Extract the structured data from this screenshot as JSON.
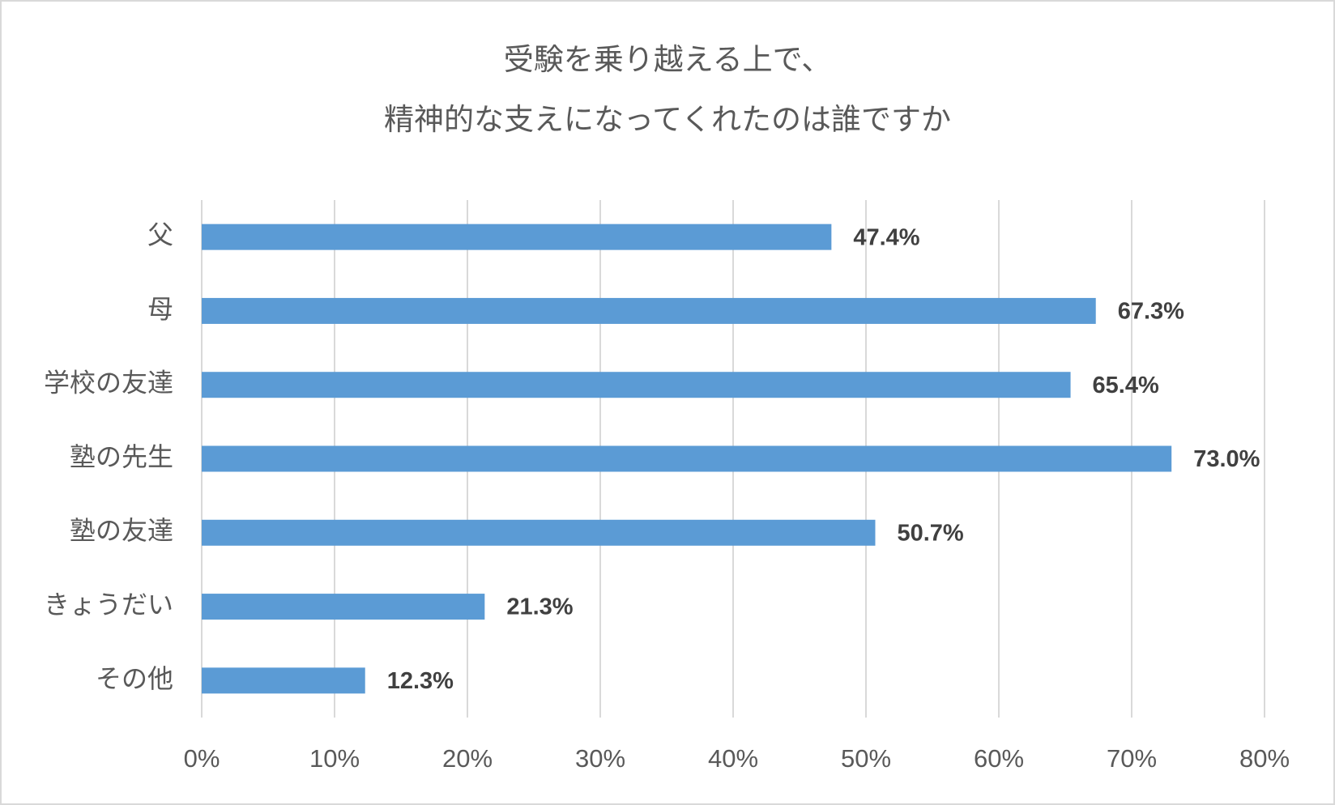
{
  "chart_data": {
    "type": "bar",
    "orientation": "horizontal",
    "title": [
      "受験を乗り越える上で、",
      "精神的な支えになってくれたのは誰ですか"
    ],
    "categories": [
      "父",
      "母",
      "学校の友達",
      "塾の先生",
      "塾の友達",
      "きょうだい",
      "その他"
    ],
    "values": [
      47.4,
      67.3,
      65.4,
      73.0,
      50.7,
      21.3,
      12.3
    ],
    "value_labels": [
      "47.4%",
      "67.3%",
      "65.4%",
      "73.0%",
      "50.7%",
      "21.3%",
      "12.3%"
    ],
    "color": "#5b9bd5",
    "xlim": [
      0,
      80
    ],
    "xticks": [
      {
        "value": 0,
        "label": "0%"
      },
      {
        "value": 10,
        "label": "10%"
      },
      {
        "value": 20,
        "label": "20%"
      },
      {
        "value": 30,
        "label": "30%"
      },
      {
        "value": 40,
        "label": "40%"
      },
      {
        "value": 50,
        "label": "50%"
      },
      {
        "value": 60,
        "label": "60%"
      },
      {
        "value": 70,
        "label": "70%"
      },
      {
        "value": 80,
        "label": "80%"
      }
    ],
    "grid": true
  }
}
